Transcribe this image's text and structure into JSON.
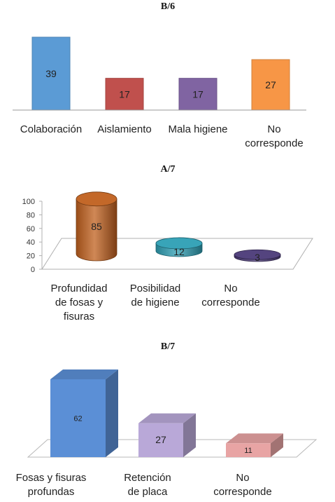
{
  "chart_data": [
    {
      "type": "bar",
      "title": "B/6",
      "categories": [
        [
          "Colaboración"
        ],
        [
          "Aislamiento"
        ],
        [
          "Mala higiene"
        ],
        [
          "No",
          "corresponde"
        ]
      ],
      "values": [
        39,
        17,
        17,
        27
      ],
      "data_labels": [
        "39",
        "17",
        "17",
        "27"
      ],
      "colors": [
        "#5B9BD5",
        "#C0504D",
        "#8064A2",
        "#F79646"
      ],
      "grid": false,
      "legend": "none"
    },
    {
      "type": "bar",
      "style": "3d-cylinder",
      "title": "A/7",
      "categories": [
        [
          "Profundidad",
          "de fosas y",
          "fisuras"
        ],
        [
          "Posibilidad",
          "de higiene"
        ],
        [
          "No",
          "corresponde"
        ]
      ],
      "values": [
        85,
        12,
        3
      ],
      "data_labels": [
        "85",
        "12",
        "3"
      ],
      "colors": [
        "#C0601E",
        "#2E9FB4",
        "#4B3A78"
      ],
      "ylim": [
        0,
        100
      ],
      "yticks": [
        "100",
        "80",
        "60",
        "40",
        "20",
        "0"
      ],
      "grid": false,
      "legend": "none"
    },
    {
      "type": "bar",
      "style": "3d-box",
      "title": "B/7",
      "categories": [
        [
          "Fosas y fisuras",
          "profundas"
        ],
        [
          "Retención",
          "de placa"
        ],
        [
          "No",
          "corresponde"
        ]
      ],
      "values": [
        62,
        27,
        11
      ],
      "data_labels": [
        "62",
        "27",
        "11"
      ],
      "colors": [
        "#5B8FD6",
        "#B9A8D8",
        "#E8A4A4"
      ],
      "grid": false,
      "legend": "none"
    }
  ]
}
